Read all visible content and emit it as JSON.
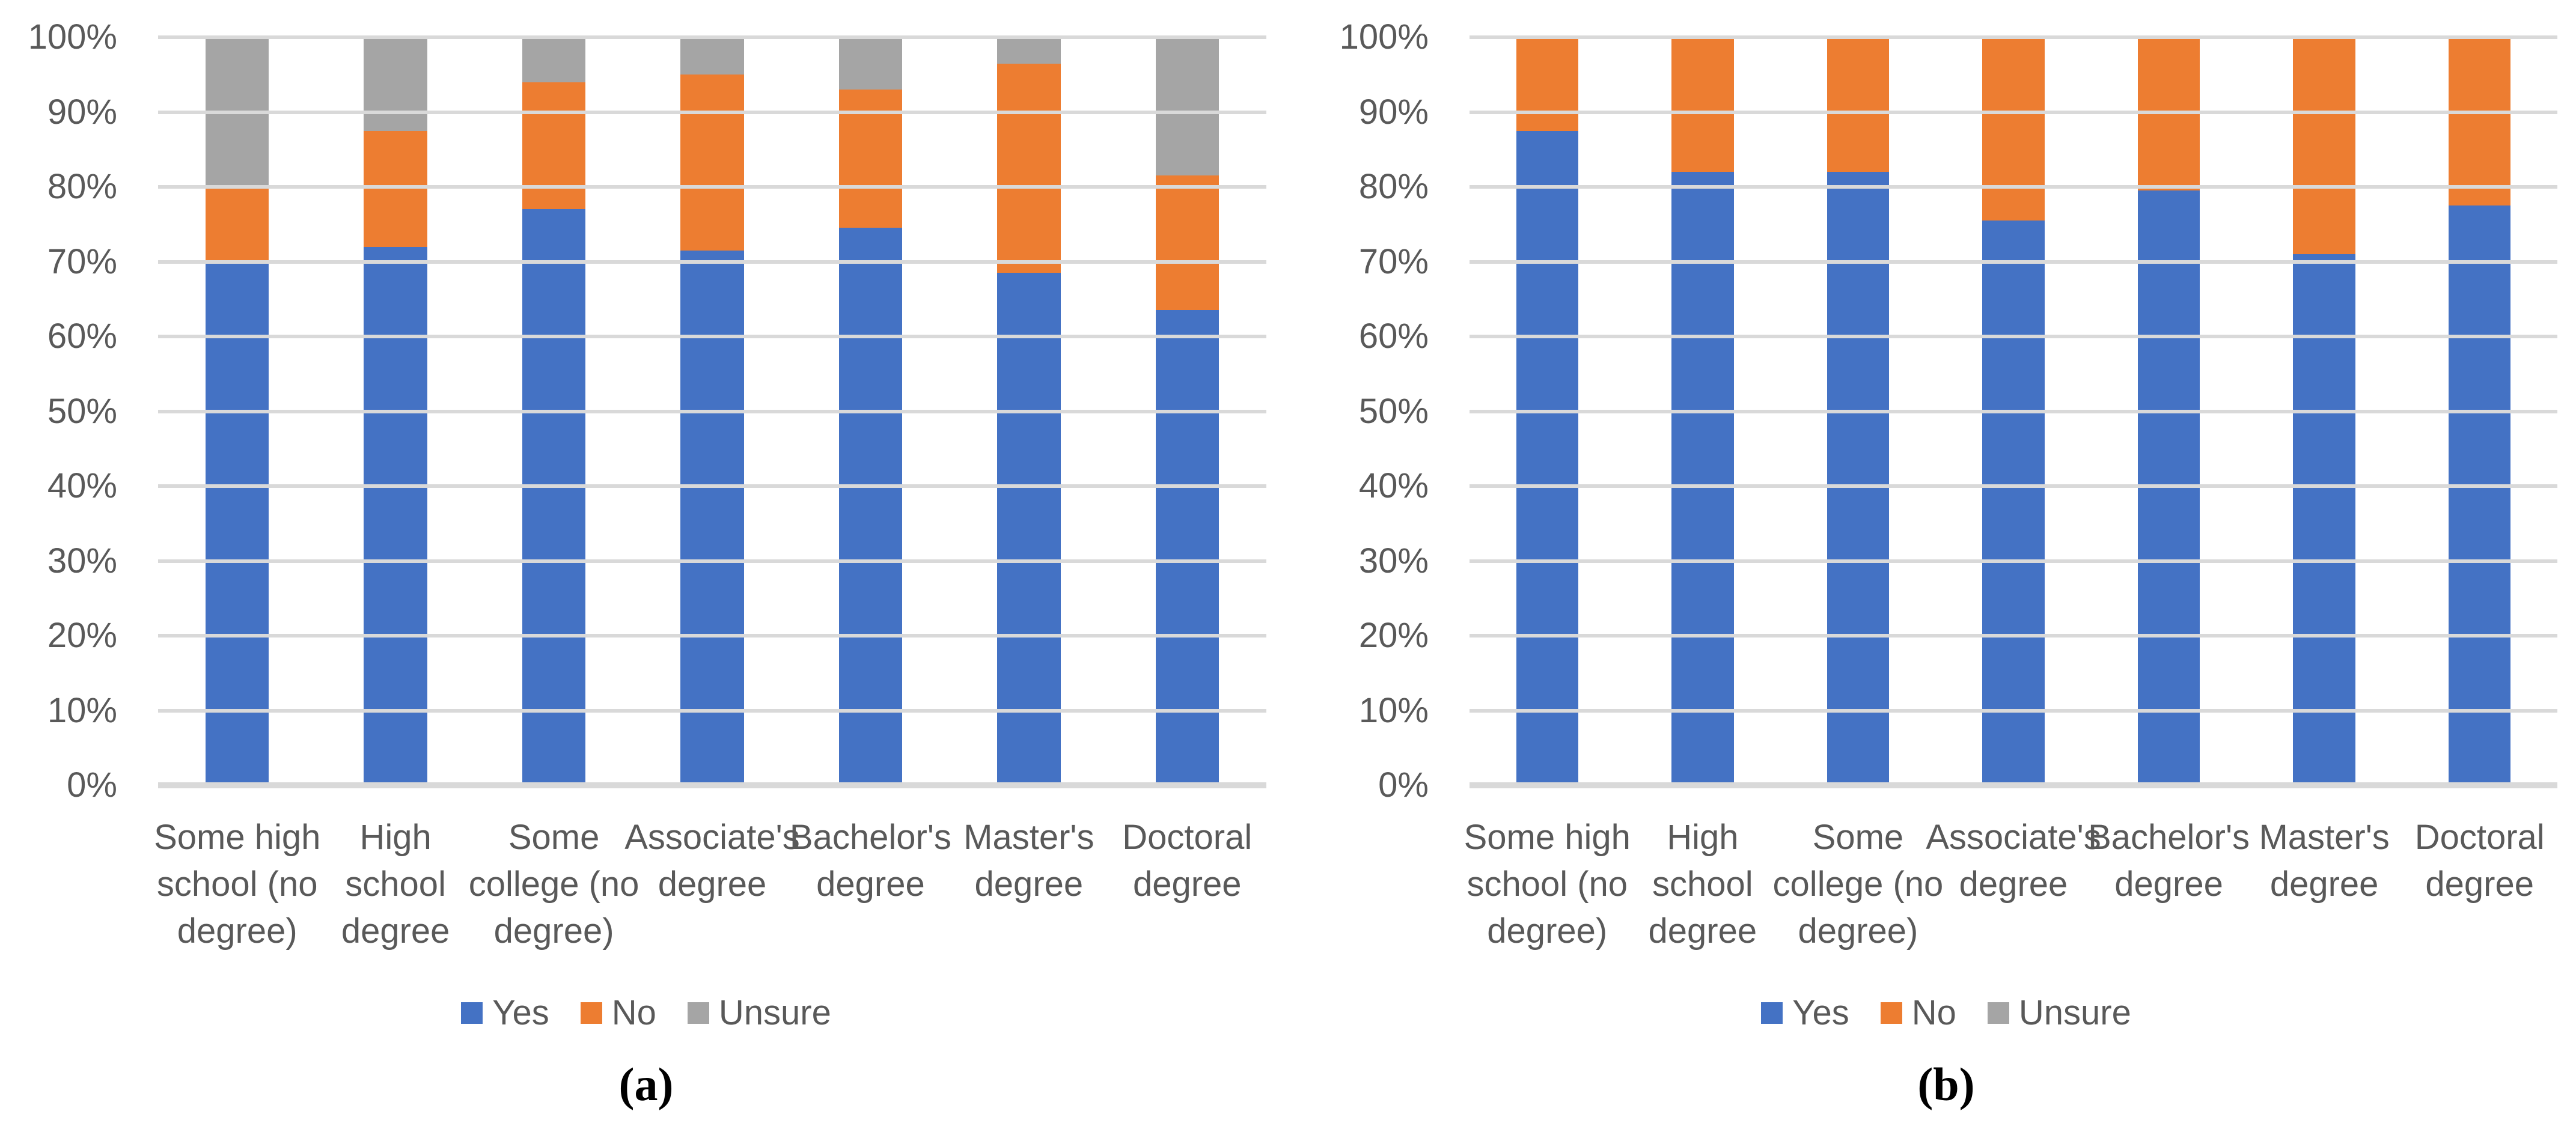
{
  "page": {
    "background": "#FFFFFF"
  },
  "colors": {
    "yes": "#4472C4",
    "no": "#ED7D31",
    "unsure": "#A5A5A5",
    "axis_text": "#595959",
    "gridline": "#D9D9D9",
    "axis_line": "#D9D9D9",
    "caption_text": "#000000"
  },
  "y_axis": {
    "tick_labels": [
      "0%",
      "10%",
      "20%",
      "30%",
      "40%",
      "50%",
      "60%",
      "70%",
      "80%",
      "90%",
      "100%"
    ]
  },
  "legend": {
    "items": [
      {
        "label": "Yes",
        "color": "#4472C4"
      },
      {
        "label": "No",
        "color": "#ED7D31"
      },
      {
        "label": "Unsure",
        "color": "#A5A5A5"
      }
    ]
  },
  "chart_data": [
    {
      "id": "a",
      "type": "bar",
      "stacked": true,
      "caption": "(a)",
      "title": "",
      "xlabel": "",
      "ylabel": "",
      "ylim": [
        0,
        100
      ],
      "y_tick_format": "percent",
      "grid": true,
      "legend_position": "bottom",
      "categories": [
        "Some high school (no degree)",
        "High school degree",
        "Some college (no degree)",
        "Associate's degree",
        "Bachelor's degree",
        "Master's degree",
        "Doctoral degree"
      ],
      "category_label_lines": [
        "Some high\nschool (no\ndegree)",
        "High\nschool\ndegree",
        "Some\ncollege (no\ndegree)",
        "Associate's\ndegree",
        "Bachelor's\ndegree",
        "Master's\ndegree",
        "Doctoral\ndegree"
      ],
      "series": [
        {
          "name": "Yes",
          "color": "#4472C4",
          "values": [
            70,
            72,
            77,
            71.5,
            74.5,
            68.5,
            63.5
          ]
        },
        {
          "name": "No",
          "color": "#ED7D31",
          "values": [
            10,
            15.5,
            17,
            23.5,
            18.5,
            28,
            18
          ]
        },
        {
          "name": "Unsure",
          "color": "#A5A5A5",
          "values": [
            20,
            12.5,
            6,
            5,
            7,
            3.5,
            18.5
          ]
        }
      ]
    },
    {
      "id": "b",
      "type": "bar",
      "stacked": true,
      "caption": "(b)",
      "title": "",
      "xlabel": "",
      "ylabel": "",
      "ylim": [
        0,
        100
      ],
      "y_tick_format": "percent",
      "grid": true,
      "legend_position": "bottom",
      "categories": [
        "Some high school (no degree)",
        "High school degree",
        "Some college (no degree)",
        "Associate's degree",
        "Bachelor's degree",
        "Master's degree",
        "Doctoral degree"
      ],
      "category_label_lines": [
        "Some high\nschool (no\ndegree)",
        "High\nschool\ndegree",
        "Some\ncollege (no\ndegree)",
        "Associate's\ndegree",
        "Bachelor's\ndegree",
        "Master's\ndegree",
        "Doctoral\ndegree"
      ],
      "series": [
        {
          "name": "Yes",
          "color": "#4472C4",
          "values": [
            87.5,
            82,
            82,
            75.5,
            79.5,
            71,
            77.5
          ]
        },
        {
          "name": "No",
          "color": "#ED7D31",
          "values": [
            12.5,
            18,
            18,
            24.5,
            20.5,
            29,
            22.5
          ]
        },
        {
          "name": "Unsure",
          "color": "#A5A5A5",
          "values": [
            0,
            0,
            0,
            0,
            0,
            0,
            0
          ]
        }
      ]
    }
  ]
}
